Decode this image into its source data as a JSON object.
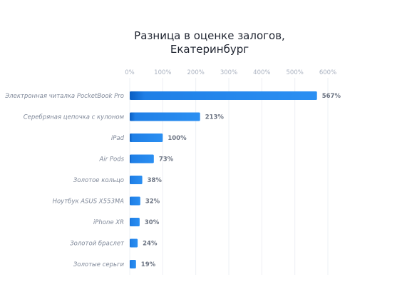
{
  "chart_data": {
    "type": "bar",
    "orientation": "horizontal",
    "title": "Разница в оценке залогов, Екатеринбург",
    "title_lines": [
      "Разница в оценке залогов,",
      "Екатеринбург"
    ],
    "categories": [
      "Электронная читалка PocketBook Pro",
      "Серебряная цепочка с кулоном",
      "iPad",
      "Air Pods",
      "Золотое кольцо",
      "Ноутбук ASUS X553MA",
      "iPhone XR",
      "Золотой браслет",
      "Золотые серьги"
    ],
    "values": [
      567,
      213,
      100,
      73,
      38,
      32,
      30,
      24,
      19
    ],
    "value_labels": [
      "567%",
      "213%",
      "100%",
      "73%",
      "38%",
      "32%",
      "30%",
      "24%",
      "19%"
    ],
    "xticks": [
      0,
      100,
      200,
      300,
      400,
      500,
      600
    ],
    "xtick_labels": [
      "0%",
      "100%",
      "200%",
      "300%",
      "400%",
      "500%",
      "600%"
    ],
    "xlim": [
      0,
      600
    ],
    "xaxis_position": "top",
    "grid": true,
    "legend": "none",
    "colors": {
      "bar_dark": "#0a5ec2",
      "bar_light": "#2b8ff2"
    }
  }
}
